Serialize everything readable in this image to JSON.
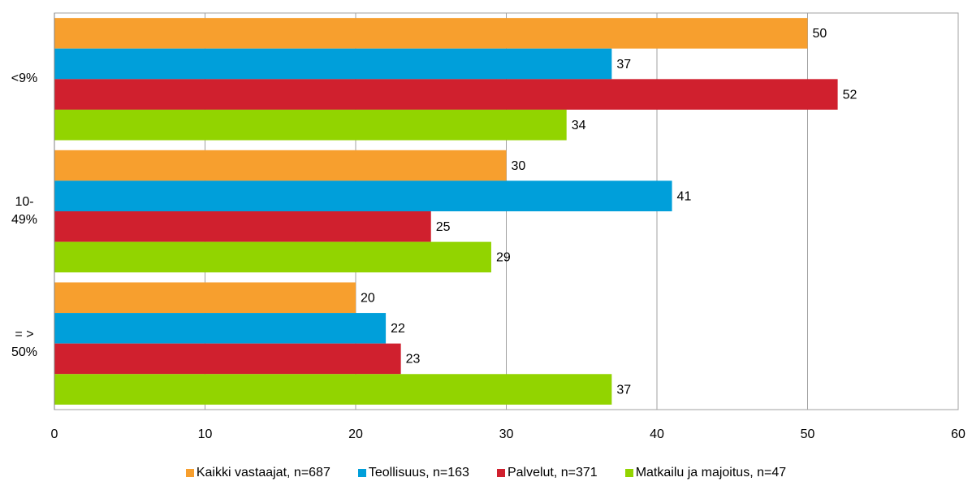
{
  "chart_data": {
    "type": "hbar",
    "categories": [
      "<9%",
      "10-49%",
      "= > 50%"
    ],
    "series": [
      {
        "name": "Kaikki vastaajat, n=687",
        "color": "#f79f2e",
        "values": [
          50,
          30,
          20
        ]
      },
      {
        "name": "Teollisuus, n=163",
        "color": "#009fda",
        "values": [
          37,
          41,
          22
        ]
      },
      {
        "name": "Palvelut, n=371",
        "color": "#d0202e",
        "values": [
          52,
          25,
          23
        ]
      },
      {
        "name": "Matkailu ja majoitus, n=47",
        "color": "#92d400",
        "values": [
          34,
          29,
          37
        ]
      }
    ],
    "xlim": [
      0,
      60
    ],
    "xticks": [
      0,
      10,
      20,
      30,
      40,
      50,
      60
    ],
    "grid": true,
    "legend": "bottom"
  }
}
